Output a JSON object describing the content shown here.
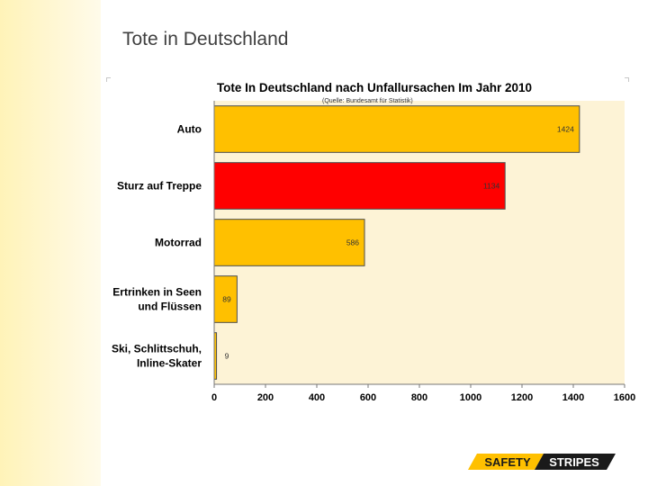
{
  "slide": {
    "title": "Tote in Deutschland"
  },
  "logo": {
    "part1": "SAFETY",
    "part2": "STRIPES"
  },
  "colors": {
    "bar_default": "#ffc000",
    "bar_highlight": "#ff0000",
    "plot_bg": "#fdf3d6",
    "left_band": "#fff6cc"
  },
  "chart_data": {
    "type": "bar",
    "orientation": "horizontal",
    "title": "Tote In Deutschland nach Unfallursachen Im Jahr 2010",
    "subtitle": "(Quelle: Bundesamt für Statistik)",
    "categories": [
      [
        "Auto"
      ],
      [
        "Sturz auf Treppe"
      ],
      [
        "Motorrad"
      ],
      [
        "Ertrinken in Seen",
        "und Flüssen"
      ],
      [
        "Ski, Schlittschuh,",
        "Inline-Skater"
      ]
    ],
    "values": [
      1424,
      1134,
      586,
      89,
      9
    ],
    "value_labels": [
      "1424",
      "1134",
      "586",
      "89",
      "9"
    ],
    "highlight_index": 1,
    "xlim": [
      0,
      1600
    ],
    "xticks": [
      0,
      200,
      400,
      600,
      800,
      1000,
      1200,
      1400,
      1600
    ],
    "xlabel": "",
    "ylabel": "",
    "grid": false
  }
}
